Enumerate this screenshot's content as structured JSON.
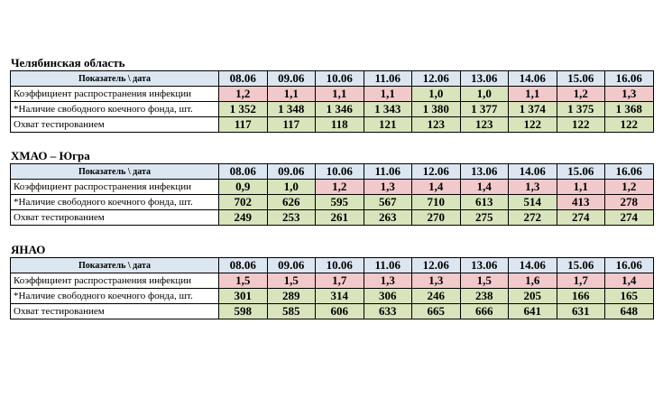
{
  "regions": [
    {
      "title": "Челябинская область",
      "header_label": "Показатель \\ дата",
      "dates": [
        "08.06",
        "09.06",
        "10.06",
        "11.06",
        "12.06",
        "13.06",
        "14.06",
        "15.06",
        "16.06"
      ],
      "rows": [
        {
          "label": "Коэффициент распространения инфекции",
          "values": [
            "1,2",
            "1,1",
            "1,1",
            "1,1",
            "1,0",
            "1,0",
            "1,1",
            "1,2",
            "1,3"
          ],
          "status": [
            "red",
            "red",
            "red",
            "red",
            "green",
            "green",
            "red",
            "red",
            "red"
          ]
        },
        {
          "label": "*Наличие свободного коечного фонда, шт.",
          "values": [
            "1 352",
            "1 348",
            "1 346",
            "1 343",
            "1 380",
            "1 377",
            "1 374",
            "1 375",
            "1 368"
          ],
          "status": [
            "green",
            "green",
            "green",
            "green",
            "green",
            "green",
            "green",
            "green",
            "green"
          ]
        },
        {
          "label": "Охват тестированием",
          "values": [
            "117",
            "117",
            "118",
            "121",
            "123",
            "123",
            "122",
            "122",
            "122"
          ],
          "status": [
            "green",
            "green",
            "green",
            "green",
            "green",
            "green",
            "green",
            "green",
            "green"
          ]
        }
      ]
    },
    {
      "title": "ХМАО – Югра",
      "header_label": "Показатель \\ дата",
      "dates": [
        "08.06",
        "09.06",
        "10.06",
        "11.06",
        "12.06",
        "13.06",
        "14.06",
        "15.06",
        "16.06"
      ],
      "rows": [
        {
          "label": "Коэффициент распространения инфекции",
          "values": [
            "0,9",
            "1,0",
            "1,2",
            "1,3",
            "1,4",
            "1,4",
            "1,3",
            "1,1",
            "1,2"
          ],
          "status": [
            "green",
            "green",
            "red",
            "red",
            "red",
            "red",
            "red",
            "red",
            "red"
          ]
        },
        {
          "label": "*Наличие свободного коечного фонда, шт.",
          "values": [
            "702",
            "626",
            "595",
            "567",
            "710",
            "613",
            "514",
            "413",
            "278"
          ],
          "status": [
            "green",
            "green",
            "green",
            "green",
            "green",
            "green",
            "green",
            "red",
            "red"
          ]
        },
        {
          "label": "Охват тестированием",
          "values": [
            "249",
            "253",
            "261",
            "263",
            "270",
            "275",
            "272",
            "274",
            "274"
          ],
          "status": [
            "green",
            "green",
            "green",
            "green",
            "green",
            "green",
            "green",
            "green",
            "green"
          ]
        }
      ]
    },
    {
      "title": "ЯНАО",
      "header_label": "Показатель \\ дата",
      "dates": [
        "08.06",
        "09.06",
        "10.06",
        "11.06",
        "12.06",
        "13.06",
        "14.06",
        "15.06",
        "16.06"
      ],
      "rows": [
        {
          "label": "Коэффициент распространения инфекции",
          "values": [
            "1,5",
            "1,5",
            "1,7",
            "1,3",
            "1,3",
            "1,5",
            "1,6",
            "1,7",
            "1,4"
          ],
          "status": [
            "red",
            "red",
            "red",
            "red",
            "red",
            "red",
            "red",
            "red",
            "red"
          ]
        },
        {
          "label": "*Наличие свободного коечного фонда, шт.",
          "values": [
            "301",
            "289",
            "314",
            "306",
            "246",
            "238",
            "205",
            "166",
            "165"
          ],
          "status": [
            "green",
            "green",
            "green",
            "green",
            "green",
            "green",
            "green",
            "green",
            "green"
          ]
        },
        {
          "label": "Охват тестированием",
          "values": [
            "598",
            "585",
            "606",
            "633",
            "665",
            "666",
            "641",
            "631",
            "648"
          ],
          "status": [
            "green",
            "green",
            "green",
            "green",
            "green",
            "green",
            "green",
            "green",
            "green"
          ]
        }
      ]
    }
  ],
  "colors": {
    "header": "#dce6f1",
    "red": "#f2c9cb",
    "green": "#d8e4bc",
    "border": "#000000"
  }
}
